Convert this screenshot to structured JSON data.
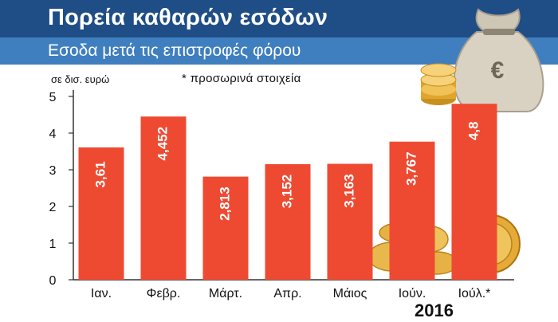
{
  "header": {
    "title": "Πορεία καθαρών εσόδων",
    "subtitle": "Εσοδα μετά τις επιστροφές φόρου"
  },
  "unit_label": "σε δισ. ευρώ",
  "note": "* προσωρινά στοιχεία",
  "year": "2016",
  "colors": {
    "title_bar": "#1f4d86",
    "subtitle_bar": "#3f7fbf",
    "bar": "#ee4a32",
    "coin": "#e0a52c"
  },
  "icons": [
    "money-bag-icon",
    "euro-coin-icon"
  ],
  "chart_data": {
    "type": "bar",
    "categories": [
      "Ιαν.",
      "Φεβρ.",
      "Μάρτ.",
      "Απρ.",
      "Μάιος",
      "Ιούν.",
      "Ιούλ.*"
    ],
    "values": [
      3.61,
      4.452,
      2.813,
      3.152,
      3.163,
      3.767,
      4.8
    ],
    "data_labels": [
      "3,61",
      "4,452",
      "2,813",
      "3,152",
      "3,163",
      "3,767",
      "4,8"
    ],
    "yticks": [
      "0",
      "1",
      "2",
      "3",
      "4",
      "5"
    ],
    "ylim": [
      0,
      5
    ],
    "title": "Πορεία καθαρών εσόδων",
    "subtitle": "Εσοδα μετά τις επιστροφές φόρου",
    "xlabel": "2016",
    "ylabel": "σε δισ. ευρώ",
    "grid": false
  }
}
